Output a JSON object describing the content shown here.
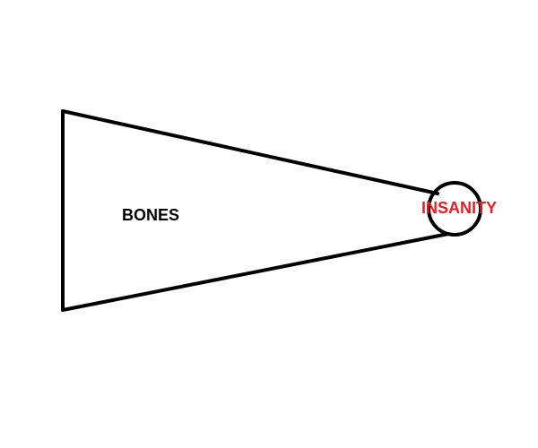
{
  "diagram": {
    "labels": {
      "bones": "BONES",
      "insanity": "INSANITY"
    },
    "colors": {
      "outline": "#000000",
      "bones_text": "#000000",
      "insanity_text": "#ed1c24",
      "background": "#ffffff"
    }
  }
}
